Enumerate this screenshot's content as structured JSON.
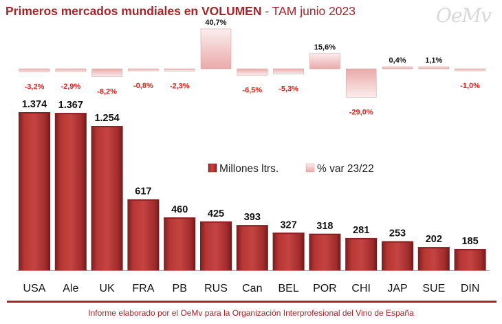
{
  "header": {
    "title_bold": "Primeros mercados mundiales en VOLUMEN",
    "title_sep": " - ",
    "title_rest": "TAM junio 2023",
    "logo_text": "OeMv"
  },
  "footer": {
    "text": "Informe elaborado por el OeMv para la Organización Interprofesional del Vino de España"
  },
  "colors": {
    "brand": "#a3262a",
    "bar": "#b23232",
    "negative_label": "#e0201c"
  },
  "chart_data": {
    "type": "bar",
    "categories": [
      "USA",
      "Ale",
      "UK",
      "FRA",
      "PB",
      "RUS",
      "Can",
      "BEL",
      "POR",
      "CHI",
      "JAP",
      "SUE",
      "DIN"
    ],
    "series": [
      {
        "name": "Millones ltrs.",
        "values": [
          1374,
          1367,
          1254,
          617,
          460,
          425,
          393,
          327,
          318,
          281,
          253,
          202,
          185
        ],
        "labels": [
          "1.374",
          "1.367",
          "1.254",
          "617",
          "460",
          "425",
          "393",
          "327",
          "318",
          "281",
          "253",
          "202",
          "185"
        ]
      },
      {
        "name": "% var 23/22",
        "values": [
          -3.2,
          -2.9,
          -8.2,
          -0.8,
          -2.3,
          40.7,
          -6.5,
          -5.3,
          15.6,
          -29.0,
          0.4,
          1.1,
          -1.0
        ],
        "labels": [
          "-3,2%",
          "-2,9%",
          "-8,2%",
          "-0,8%",
          "-2,3%",
          "40,7%",
          "-6,5%",
          "-5,3%",
          "15,6%",
          "-29,0%",
          "0,4%",
          "1,1%",
          "-1,0%"
        ]
      }
    ],
    "legend": {
      "position": "center-right",
      "entries": [
        "Millones ltrs.",
        "% var 23/22"
      ]
    },
    "grid": false
  }
}
